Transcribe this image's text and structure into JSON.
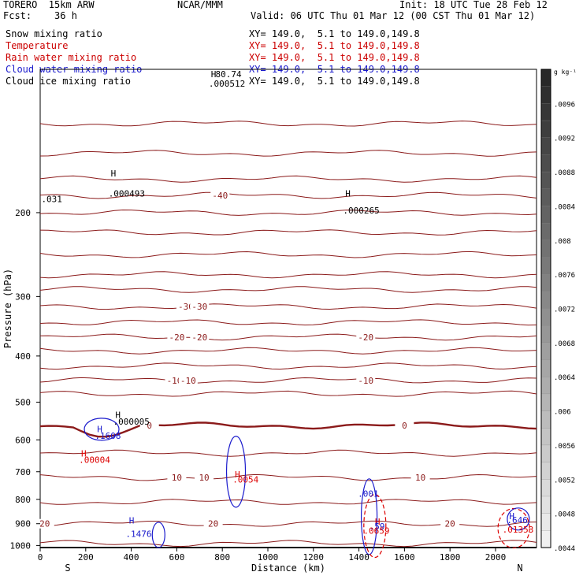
{
  "header": {
    "model": "TORERO  15km ARW",
    "org": "NCAR/MMM",
    "init": "Init: 18 UTC Tue 28 Feb 12",
    "fcst": "Fcst:    36 h",
    "valid": "Valid: 06 UTC Thu 01 Mar 12 (00 CST Thu 01 Mar 12)",
    "fields": [
      {
        "name": "Snow mixing ratio",
        "xy": "XY= 149.0,  5.1 to 149.0,149.8",
        "color": "#000000"
      },
      {
        "name": "Temperature",
        "xy": "XY= 149.0,  5.1 to 149.0,149.8",
        "color": "#cc0000"
      },
      {
        "name": "Rain water mixing ratio",
        "xy": "XY= 149.0,  5.1 to 149.0,149.8",
        "color": "#cc0000"
      },
      {
        "name": "Cloud water mixing ratio",
        "xy": "XY= 149.0,  5.1 to 149.0,149.8",
        "color": "#1a1acc"
      },
      {
        "name": "Cloud ice mixing ratio",
        "xy": "XY= 149.0,  5.1 to 149.0,149.8",
        "color": "#000000"
      }
    ]
  },
  "chart_data": {
    "type": "line",
    "title": "",
    "xlabel": "Distance (km)",
    "ylabel": "Pressure (hPa)",
    "xlim": [
      0,
      2180
    ],
    "ylim": [
      1010,
      100
    ],
    "x_ticks": [
      0,
      200,
      400,
      600,
      800,
      1000,
      1200,
      1400,
      1600,
      1800,
      2000
    ],
    "y_ticks": [
      200,
      300,
      400,
      500,
      600,
      700,
      800,
      900,
      1000
    ],
    "y_scale": "log",
    "south_label": "S",
    "north_label": "N",
    "colors": {
      "temperature": "#8b1a1a",
      "cloud_water": "#1a1acc",
      "rain": "#dd0000",
      "snow": "#000000"
    },
    "temperature_contours": [
      {
        "label": "-40",
        "p": 184,
        "label_x": 790
      },
      {
        "label": "-30",
        "p": 315,
        "label_x": 640
      },
      {
        "label": "-30",
        "p": 315,
        "label_x": 700
      },
      {
        "label": "-20",
        "p": 365,
        "label_x": 600
      },
      {
        "label": "-20",
        "p": 365,
        "label_x": 700
      },
      {
        "label": "-20",
        "p": 365,
        "label_x": 1430
      },
      {
        "label": "-10",
        "p": 450,
        "label_x": 590
      },
      {
        "label": "-10",
        "p": 450,
        "label_x": 650
      },
      {
        "label": "-10",
        "p": 450,
        "label_x": 1430
      },
      {
        "label": "0",
        "p": 560,
        "label_x": 480
      },
      {
        "label": "0",
        "p": 560,
        "label_x": 1600
      },
      {
        "label": "10",
        "p": 720,
        "label_x": 600
      },
      {
        "label": "10",
        "p": 720,
        "label_x": 720
      },
      {
        "label": "10",
        "p": 720,
        "label_x": 1670
      },
      {
        "label": "20",
        "p": 900,
        "label_x": 760
      },
      {
        "label": "20",
        "p": 900,
        "label_x": 1800
      },
      {
        "label": "20",
        "p": 900,
        "label_x": 20
      }
    ],
    "temperature_lines_hpa": [
      130,
      150,
      170,
      184,
      200,
      220,
      245,
      270,
      290,
      315,
      340,
      365,
      390,
      420,
      450,
      480,
      560,
      640,
      720,
      810,
      900,
      990
    ],
    "annotations": [
      {
        "text": "H",
        "x": 310,
        "p": 168,
        "color": "#000000"
      },
      {
        "text": ".000493",
        "x": 300,
        "p": 185,
        "color": "#000000"
      },
      {
        "text": "H",
        "x": 1340,
        "p": 185,
        "color": "#000000"
      },
      {
        "text": ".000265",
        "x": 1330,
        "p": 201,
        "color": "#000000"
      },
      {
        "text": ".031",
        "x": 5,
        "p": 190,
        "color": "#000000"
      },
      {
        "text": "H",
        "x": 330,
        "p": 540,
        "color": "#000000"
      },
      {
        "text": ".000005",
        "x": 320,
        "p": 557,
        "color": "#000000"
      },
      {
        "text": "H",
        "x": 250,
        "p": 578,
        "color": "#1a1acc"
      },
      {
        "text": ".1608",
        "x": 240,
        "p": 597,
        "color": "#1a1acc"
      },
      {
        "text": "H",
        "x": 180,
        "p": 651,
        "color": "#dd0000"
      },
      {
        "text": ".00004",
        "x": 170,
        "p": 670,
        "color": "#dd0000"
      },
      {
        "text": "H",
        "x": 855,
        "p": 720,
        "color": "#dd0000"
      },
      {
        "text": ".0054",
        "x": 845,
        "p": 737,
        "color": "#dd0000"
      },
      {
        "text": ".001",
        "x": 1395,
        "p": 790,
        "color": "#1a1acc"
      },
      {
        "text": "H",
        "x": 1470,
        "p": 905,
        "color": "#dd0000"
      },
      {
        "text": ".59",
        "x": 1445,
        "p": 925,
        "color": "#1a1acc"
      },
      {
        "text": ".0659",
        "x": 1420,
        "p": 945,
        "color": "#dd0000"
      },
      {
        "text": "H",
        "x": 390,
        "p": 900,
        "color": "#1a1acc"
      },
      {
        "text": ".1476",
        "x": 375,
        "p": 960,
        "color": "#1a1acc"
      },
      {
        "text": "H",
        "x": 2060,
        "p": 880,
        "color": "#1a1acc"
      },
      {
        "text": ".646",
        "x": 2050,
        "p": 897,
        "color": "#1a1acc"
      },
      {
        "text": ".01353",
        "x": 2030,
        "p": 940,
        "color": "#dd0000"
      }
    ],
    "top_overlay_labels": [
      {
        "text": "80.74",
        "x": 770,
        "color": "#000000"
      },
      {
        "text": ".000512",
        "x": 740,
        "color": "#000000"
      },
      {
        "text": "H",
        "x": 750,
        "color": "#000000"
      }
    ]
  },
  "colorbar": {
    "unit": "g kg⁻¹",
    "tick_labels": [
      ".0096",
      ".0092",
      ".0088",
      ".0084",
      ".008",
      ".0076",
      ".0072",
      ".0068",
      ".0064",
      ".006",
      ".0056",
      ".0052",
      ".0048",
      ".0044"
    ],
    "min": 0.0044,
    "max": 0.01,
    "step": 0.0002
  }
}
